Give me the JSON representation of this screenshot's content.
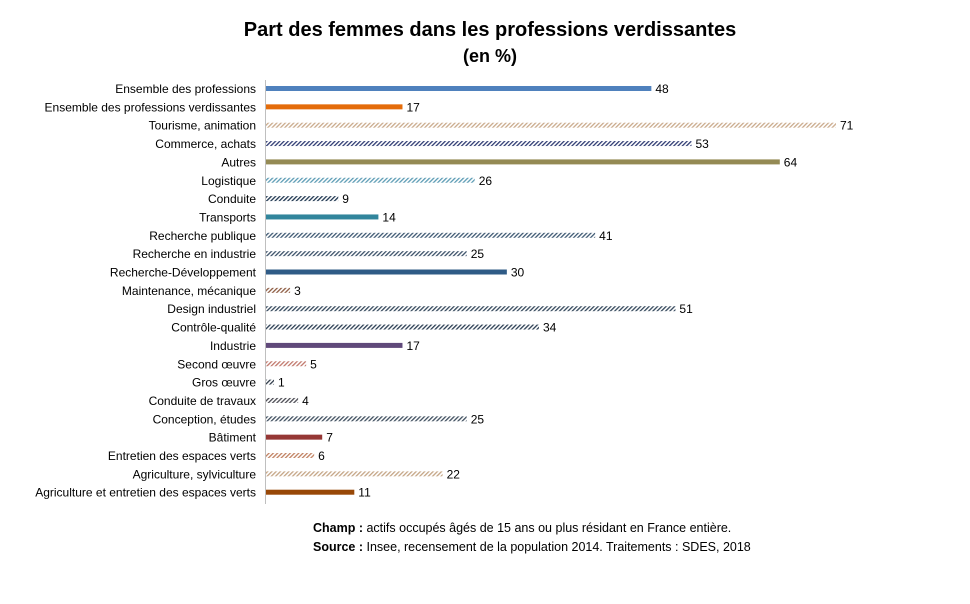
{
  "chart_data": {
    "type": "bar",
    "orientation": "horizontal",
    "title": "Part des femmes dans les professions verdissantes",
    "subtitle": "(en %)",
    "xlim": [
      0,
      71
    ],
    "grid": false,
    "legend": "none",
    "categories": [
      "Ensemble des professions",
      "Ensemble des professions verdissantes",
      "Tourisme, animation",
      "Commerce, achats",
      "Autres",
      "Logistique",
      "Conduite",
      "Transports",
      "Recherche publique",
      "Recherche en industrie",
      "Recherche-Développement",
      "Maintenance, mécanique",
      "Design industriel",
      "Contrôle-qualité",
      "Industrie",
      "Second œuvre",
      "Gros œuvre",
      "Conduite de travaux",
      "Conception, études",
      "Bâtiment",
      "Entretien des espaces verts",
      "Agriculture, sylviculture",
      "Agriculture et entretien des espaces verts"
    ],
    "values": [
      48,
      17,
      71,
      53,
      64,
      26,
      9,
      14,
      41,
      25,
      30,
      3,
      51,
      34,
      17,
      5,
      1,
      4,
      25,
      7,
      6,
      22,
      11
    ],
    "styles": [
      "solid",
      "solid",
      "hatch",
      "hatch",
      "solid",
      "hatch",
      "hatch",
      "solid",
      "hatch",
      "hatch",
      "solid",
      "hatch",
      "hatch",
      "hatch",
      "solid",
      "hatch",
      "hatch",
      "hatch",
      "hatch",
      "solid",
      "hatch",
      "hatch",
      "solid"
    ],
    "colors": [
      "#4f81bd",
      "#e46c0a",
      "#c9a98a",
      "#2d3a72",
      "#948a54",
      "#5b9bb4",
      "#1e3650",
      "#31859c",
      "#3d5872",
      "#3a5068",
      "#2f5b86",
      "#8c5a40",
      "#33475b",
      "#2a3d52",
      "#60497a",
      "#c0766a",
      "#2e3a48",
      "#4a4a52",
      "#3e4e5e",
      "#953735",
      "#c08060",
      "#c4a484",
      "#984807"
    ]
  },
  "notes": {
    "champ_label": "Champ :",
    "champ_text": " actifs occupés âgés de 15 ans ou plus résidant en France entière.",
    "source_label": "Source :",
    "source_text": " Insee, recensement de la population 2014. Traitements : SDES, 2018"
  }
}
